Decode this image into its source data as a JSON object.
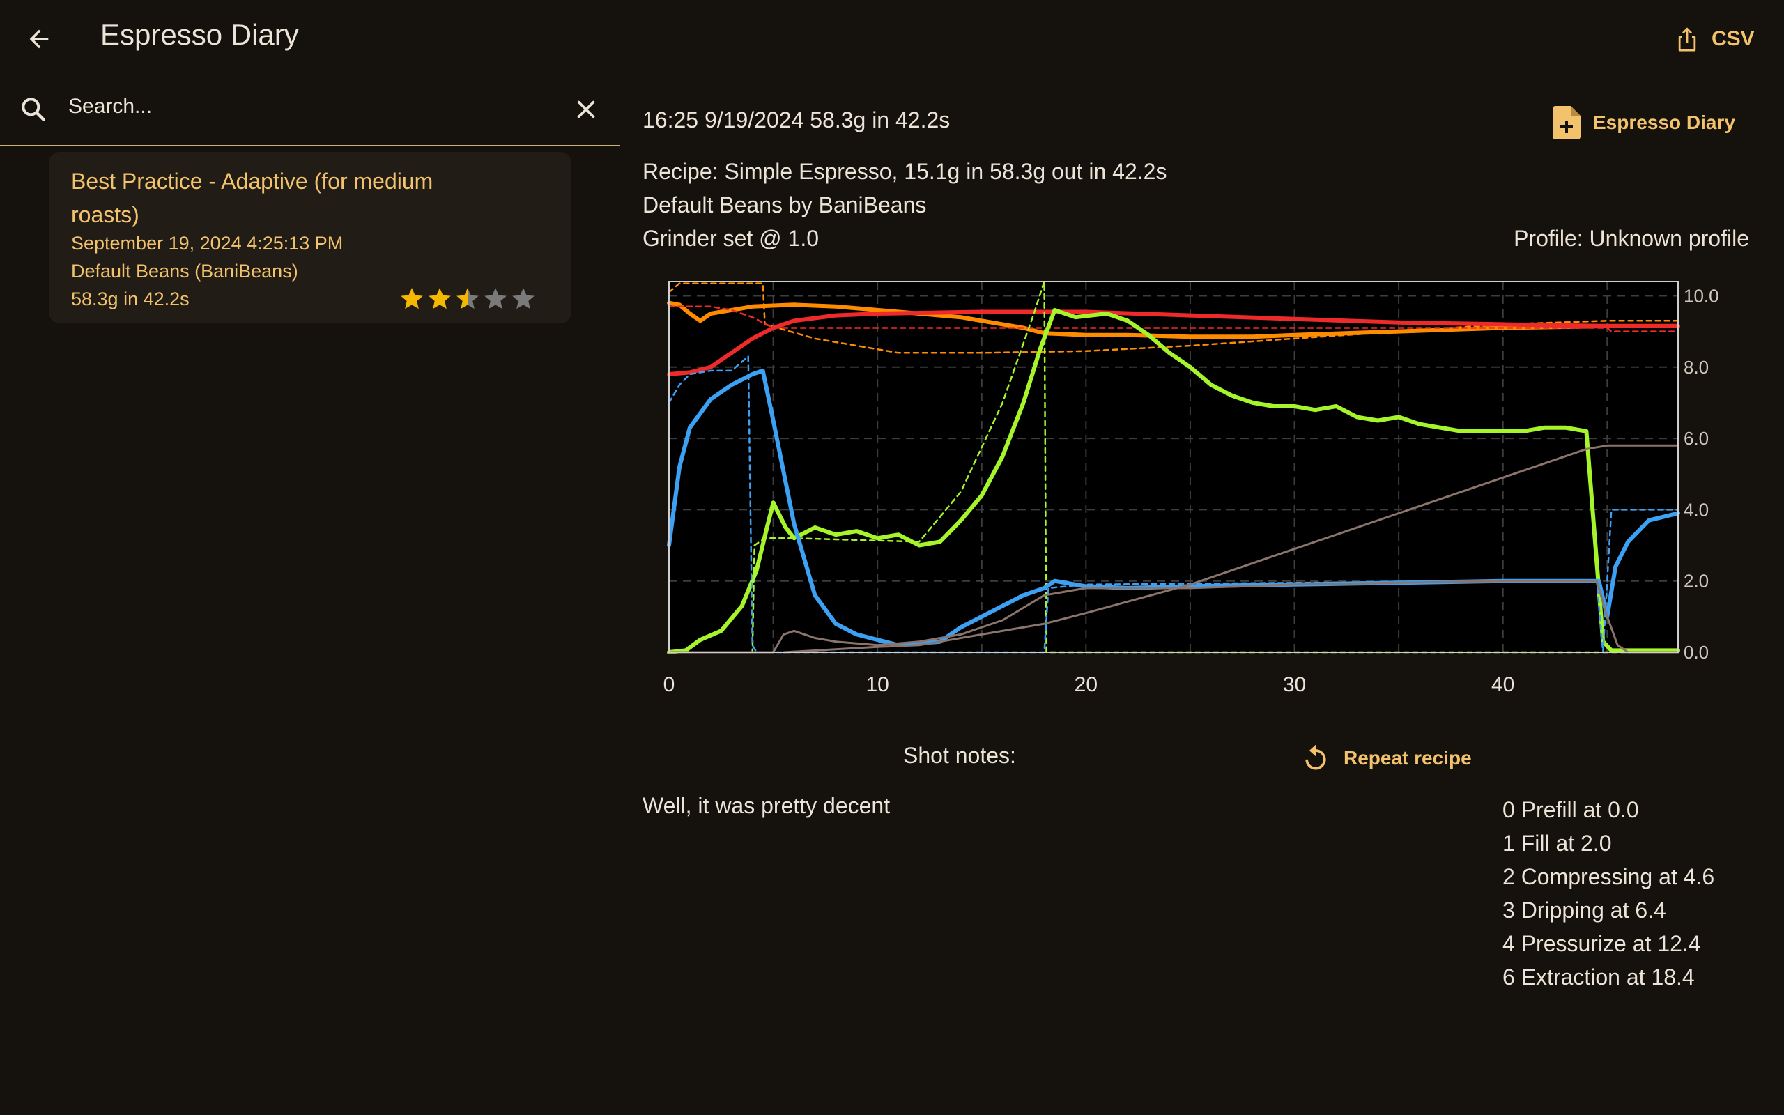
{
  "appbar": {
    "title": "Espresso Diary",
    "back_icon": "arrow-back-icon",
    "csv_label": "CSV",
    "csv_icon": "share-icon"
  },
  "search": {
    "placeholder": "Search...",
    "value": ""
  },
  "shot_list": [
    {
      "title": "Best Practice - Adaptive (for medium roasts)",
      "datetime": "September 19, 2024 4:25:13 PM",
      "beans": "Default Beans (BaniBeans)",
      "summary": "58.3g in 42.2s",
      "rating": 2.5,
      "rating_max": 5
    }
  ],
  "detail": {
    "header": "16:25 9/19/2024 58.3g in 42.2s",
    "share_label": "Espresso Diary",
    "recipe": "Recipe: Simple Espresso, 15.1g in 58.3g out in 42.2s",
    "beans": "Default Beans by BaniBeans",
    "grinder": "Grinder set @ 1.0",
    "profile": "Profile: Unknown profile",
    "notes_label": "Shot notes:",
    "repeat_label": "Repeat recipe",
    "notes": "Well, it was pretty decent",
    "phases": [
      "0 Prefill at 0.0",
      "1 Fill at 2.0",
      "2 Compressing at 4.6",
      "3 Dripping at 6.4",
      "4 Pressurize at 12.4",
      "6 Extraction at 18.4"
    ]
  },
  "colors": {
    "accent": "#f2c26c",
    "background": "#15110c",
    "card": "#211c16",
    "star_on": "#f5b800",
    "star_off": "#7a7a7a"
  },
  "chart_data": {
    "type": "line",
    "xlim": [
      0,
      48.4
    ],
    "ylim": [
      0,
      10.4
    ],
    "x_ticks": [
      0,
      10,
      20,
      30,
      40
    ],
    "x_tick_labels": [
      "0",
      "10",
      "20",
      "30",
      "40"
    ],
    "y_ticks": [
      0,
      2,
      4,
      6,
      8,
      10
    ],
    "y_tick_labels": [
      "0.0",
      "2.0",
      "4.0",
      "6.0",
      "8.0",
      "10.0"
    ],
    "y_axis_position": "right",
    "grid": true,
    "series": [
      {
        "color": "#ff8c00",
        "dashed": true,
        "width": 2.5,
        "points": [
          [
            0,
            10.1
          ],
          [
            0.5,
            10.35
          ],
          [
            2,
            10.35
          ],
          [
            4.5,
            10.35
          ],
          [
            4.6,
            9.2
          ],
          [
            7,
            8.8
          ],
          [
            10,
            8.5
          ],
          [
            11,
            8.4
          ],
          [
            15,
            8.4
          ],
          [
            20,
            8.45
          ],
          [
            25,
            8.6
          ],
          [
            30,
            8.8
          ],
          [
            35,
            9.0
          ],
          [
            40,
            9.2
          ],
          [
            45,
            9.3
          ],
          [
            48.4,
            9.3
          ]
        ]
      },
      {
        "color": "#ff8c00",
        "dashed": false,
        "width": 6,
        "points": [
          [
            0,
            9.8
          ],
          [
            0.5,
            9.75
          ],
          [
            1,
            9.5
          ],
          [
            1.5,
            9.3
          ],
          [
            2,
            9.5
          ],
          [
            3,
            9.6
          ],
          [
            4,
            9.7
          ],
          [
            6,
            9.75
          ],
          [
            8,
            9.7
          ],
          [
            10,
            9.6
          ],
          [
            12,
            9.5
          ],
          [
            14,
            9.4
          ],
          [
            16,
            9.2
          ],
          [
            17,
            9.1
          ],
          [
            18,
            8.95
          ],
          [
            20,
            8.9
          ],
          [
            22,
            8.9
          ],
          [
            25,
            8.85
          ],
          [
            28,
            8.85
          ],
          [
            30,
            8.9
          ],
          [
            35,
            9.0
          ],
          [
            40,
            9.1
          ],
          [
            45,
            9.15
          ],
          [
            48.4,
            9.15
          ]
        ]
      },
      {
        "color": "#ee2a2a",
        "dashed": true,
        "width": 2.5,
        "points": [
          [
            0,
            9.7
          ],
          [
            2,
            9.7
          ],
          [
            3,
            9.6
          ],
          [
            4,
            9.4
          ],
          [
            5,
            9.1
          ],
          [
            6,
            9.1
          ],
          [
            45,
            9.1
          ],
          [
            45.2,
            9.0
          ],
          [
            48.4,
            9.0
          ]
        ]
      },
      {
        "color": "#ee2a2a",
        "dashed": false,
        "width": 6,
        "points": [
          [
            0,
            7.8
          ],
          [
            1,
            7.85
          ],
          [
            2,
            8.0
          ],
          [
            3,
            8.4
          ],
          [
            4,
            8.8
          ],
          [
            5,
            9.1
          ],
          [
            6,
            9.3
          ],
          [
            8,
            9.45
          ],
          [
            10,
            9.5
          ],
          [
            15,
            9.55
          ],
          [
            20,
            9.55
          ],
          [
            25,
            9.45
          ],
          [
            30,
            9.35
          ],
          [
            35,
            9.25
          ],
          [
            40,
            9.2
          ],
          [
            45,
            9.15
          ],
          [
            48.4,
            9.15
          ]
        ]
      },
      {
        "color": "#a6f52a",
        "dashed": true,
        "width": 2.5,
        "points": [
          [
            0,
            0
          ],
          [
            4,
            0
          ],
          [
            4.1,
            3.0
          ],
          [
            4.6,
            3.2
          ],
          [
            6,
            3.2
          ],
          [
            12,
            3.1
          ],
          [
            14,
            4.5
          ],
          [
            16,
            7.0
          ],
          [
            17.5,
            9.5
          ],
          [
            18,
            10.4
          ],
          [
            18.1,
            0
          ],
          [
            48.4,
            0
          ]
        ]
      },
      {
        "color": "#a6f52a",
        "dashed": false,
        "width": 6,
        "points": [
          [
            0,
            0
          ],
          [
            0.8,
            0.05
          ],
          [
            1.5,
            0.35
          ],
          [
            2.5,
            0.6
          ],
          [
            3.5,
            1.3
          ],
          [
            4.2,
            2.3
          ],
          [
            4.7,
            3.5
          ],
          [
            5,
            4.2
          ],
          [
            5.6,
            3.5
          ],
          [
            6,
            3.2
          ],
          [
            7,
            3.5
          ],
          [
            8,
            3.3
          ],
          [
            9,
            3.4
          ],
          [
            10,
            3.2
          ],
          [
            11,
            3.3
          ],
          [
            12,
            3.0
          ],
          [
            13,
            3.1
          ],
          [
            14,
            3.7
          ],
          [
            15,
            4.4
          ],
          [
            16,
            5.5
          ],
          [
            17,
            7.0
          ],
          [
            17.8,
            8.5
          ],
          [
            18.5,
            9.6
          ],
          [
            19.5,
            9.4
          ],
          [
            21,
            9.5
          ],
          [
            22,
            9.3
          ],
          [
            23,
            8.9
          ],
          [
            24,
            8.4
          ],
          [
            25,
            8.0
          ],
          [
            26,
            7.5
          ],
          [
            27,
            7.2
          ],
          [
            28,
            7.0
          ],
          [
            29,
            6.9
          ],
          [
            30,
            6.9
          ],
          [
            31,
            6.8
          ],
          [
            32,
            6.9
          ],
          [
            33,
            6.6
          ],
          [
            34,
            6.5
          ],
          [
            35,
            6.6
          ],
          [
            36,
            6.4
          ],
          [
            37,
            6.3
          ],
          [
            38,
            6.2
          ],
          [
            39,
            6.2
          ],
          [
            40,
            6.2
          ],
          [
            41,
            6.2
          ],
          [
            42,
            6.3
          ],
          [
            43,
            6.3
          ],
          [
            44,
            6.2
          ],
          [
            44.8,
            0.3
          ],
          [
            45.2,
            0.05
          ],
          [
            48.4,
            0.05
          ]
        ]
      },
      {
        "color": "#3da1f3",
        "dashed": true,
        "width": 2.5,
        "points": [
          [
            0,
            7.0
          ],
          [
            0.5,
            7.5
          ],
          [
            1,
            7.8
          ],
          [
            2,
            7.9
          ],
          [
            3,
            7.9
          ],
          [
            3.8,
            8.3
          ],
          [
            4,
            0.2
          ],
          [
            4.2,
            0
          ],
          [
            18,
            0
          ],
          [
            18.2,
            1.8
          ],
          [
            20,
            1.9
          ],
          [
            30,
            1.95
          ],
          [
            40,
            2.0
          ],
          [
            44.5,
            2.0
          ],
          [
            44.8,
            0
          ],
          [
            45.2,
            4.0
          ],
          [
            48.4,
            4.0
          ]
        ]
      },
      {
        "color": "#3da1f3",
        "dashed": false,
        "width": 6,
        "points": [
          [
            0,
            3.0
          ],
          [
            0.5,
            5.2
          ],
          [
            1,
            6.3
          ],
          [
            2,
            7.1
          ],
          [
            3,
            7.5
          ],
          [
            4,
            7.8
          ],
          [
            4.5,
            7.9
          ],
          [
            5,
            6.5
          ],
          [
            6,
            3.6
          ],
          [
            7,
            1.6
          ],
          [
            8,
            0.8
          ],
          [
            9,
            0.5
          ],
          [
            10,
            0.35
          ],
          [
            11,
            0.2
          ],
          [
            12,
            0.25
          ],
          [
            13,
            0.3
          ],
          [
            14,
            0.7
          ],
          [
            15,
            1.0
          ],
          [
            16,
            1.3
          ],
          [
            17,
            1.6
          ],
          [
            18,
            1.8
          ],
          [
            18.5,
            2.0
          ],
          [
            20,
            1.85
          ],
          [
            22,
            1.8
          ],
          [
            25,
            1.85
          ],
          [
            30,
            1.9
          ],
          [
            35,
            1.95
          ],
          [
            40,
            2.0
          ],
          [
            44,
            2.0
          ],
          [
            44.6,
            2.0
          ],
          [
            45,
            1.0
          ],
          [
            45.4,
            2.4
          ],
          [
            46,
            3.1
          ],
          [
            47,
            3.7
          ],
          [
            48.4,
            3.9
          ]
        ]
      },
      {
        "color": "#8a746c",
        "dashed": false,
        "width": 3,
        "points": [
          [
            0,
            0
          ],
          [
            5,
            0
          ],
          [
            5.5,
            0.5
          ],
          [
            6,
            0.6
          ],
          [
            7,
            0.4
          ],
          [
            8,
            0.3
          ],
          [
            9,
            0.25
          ],
          [
            10,
            0.2
          ],
          [
            12,
            0.3
          ],
          [
            14,
            0.5
          ],
          [
            16,
            0.9
          ],
          [
            18,
            1.6
          ],
          [
            20,
            1.8
          ],
          [
            25,
            1.8
          ],
          [
            30,
            1.9
          ],
          [
            35,
            1.95
          ],
          [
            40,
            2.0
          ],
          [
            44,
            2.0
          ],
          [
            44.5,
            2.0
          ],
          [
            45,
            1.0
          ],
          [
            45.5,
            0.2
          ],
          [
            46,
            0
          ],
          [
            48.4,
            0
          ]
        ]
      },
      {
        "color": "#8a746c",
        "dashed": false,
        "width": 3,
        "points": [
          [
            5.5,
            0
          ],
          [
            10,
            0.15
          ],
          [
            12,
            0.2
          ],
          [
            15,
            0.5
          ],
          [
            18,
            0.8
          ],
          [
            20,
            1.1
          ],
          [
            25,
            1.9
          ],
          [
            30,
            2.9
          ],
          [
            35,
            3.9
          ],
          [
            40,
            4.9
          ],
          [
            42,
            5.3
          ],
          [
            44,
            5.7
          ],
          [
            45,
            5.8
          ],
          [
            48.4,
            5.8
          ]
        ]
      }
    ]
  }
}
